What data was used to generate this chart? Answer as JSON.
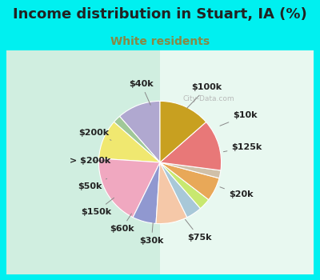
{
  "title": "Income distribution in Stuart, IA (%)",
  "subtitle": "White residents",
  "labels": [
    "$100k",
    "$10k",
    "$125k",
    "$20k",
    "$75k",
    "$30k",
    "$60k",
    "$150k",
    "$50k",
    "> $200k",
    "$200k",
    "$40k"
  ],
  "sizes": [
    11,
    2,
    10,
    18,
    6,
    8,
    4,
    3,
    6,
    2,
    13,
    13
  ],
  "colors": [
    "#b0a8d0",
    "#a0c898",
    "#f0e870",
    "#f0a8c0",
    "#9098d0",
    "#f5c8a8",
    "#a8c8d8",
    "#c8e870",
    "#e8a858",
    "#d0c0a8",
    "#e87878",
    "#c8a020"
  ],
  "title_fontsize": 13,
  "subtitle_fontsize": 10,
  "title_color": "#222222",
  "subtitle_color": "#888844",
  "bg_cyan": "#00f0f0",
  "bg_chart": "#e0f0e8",
  "watermark": "City-Data.com",
  "startangle": 90,
  "label_fontsize": 8
}
